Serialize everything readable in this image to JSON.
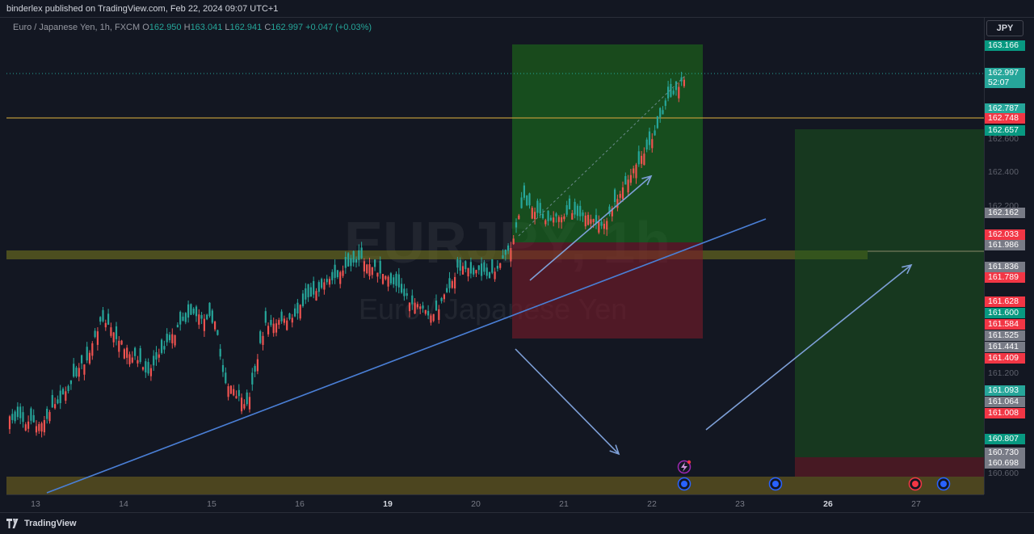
{
  "header": {
    "publish_text": "binderlex published on TradingView.com, Feb 22, 2024 09:07 UTC+1"
  },
  "legend": {
    "symbol": "Euro / Japanese Yen, 1h, FXCM",
    "o_label": "O",
    "o": "162.950",
    "h_label": "H",
    "h": "163.041",
    "l_label": "L",
    "l": "162.941",
    "c_label": "C",
    "c": "162.997",
    "change": "+0.047 (+0.03%)"
  },
  "currency_button": "JPY",
  "watermark": {
    "symbol": "EURJPY, 1h",
    "name": "Euro / Japanese Yen"
  },
  "price_labels": [
    {
      "text": "163.166",
      "color": "#089981"
    },
    {
      "text": "162.997",
      "color": "#26a69a"
    },
    {
      "text": "52:07",
      "color": "#26a69a"
    },
    {
      "text": "162.787",
      "color": "#26a69a"
    },
    {
      "text": "162.748",
      "color": "#f23645"
    },
    {
      "text": "162.657",
      "color": "#089981"
    },
    {
      "text": "162.162",
      "color": "#787b86"
    },
    {
      "text": "162.033",
      "color": "#f23645"
    },
    {
      "text": "161.986",
      "color": "#787b86"
    },
    {
      "text": "161.836",
      "color": "#787b86"
    },
    {
      "text": "161.789",
      "color": "#f23645"
    },
    {
      "text": "161.628",
      "color": "#f23645"
    },
    {
      "text": "161.600",
      "color": "#089981"
    },
    {
      "text": "161.584",
      "color": "#f23645"
    },
    {
      "text": "161.525",
      "color": "#787b86"
    },
    {
      "text": "161.441",
      "color": "#787b86"
    },
    {
      "text": "161.409",
      "color": "#f23645"
    },
    {
      "text": "161.093",
      "color": "#26a69a"
    },
    {
      "text": "161.064",
      "color": "#787b86"
    },
    {
      "text": "161.008",
      "color": "#f23645"
    },
    {
      "text": "160.807",
      "color": "#089981"
    },
    {
      "text": "160.730",
      "color": "#787b86"
    },
    {
      "text": "160.698",
      "color": "#787b86"
    }
  ],
  "price_ticks": [
    "162.600",
    "162.400",
    "162.200",
    "161.200",
    "160.600"
  ],
  "time_ticks": [
    {
      "label": "13",
      "bold": false
    },
    {
      "label": "14",
      "bold": false
    },
    {
      "label": "15",
      "bold": false
    },
    {
      "label": "16",
      "bold": false
    },
    {
      "label": "19",
      "bold": true
    },
    {
      "label": "20",
      "bold": false
    },
    {
      "label": "21",
      "bold": false
    },
    {
      "label": "22",
      "bold": false
    },
    {
      "label": "23",
      "bold": false
    },
    {
      "label": "26",
      "bold": true
    },
    {
      "label": "27",
      "bold": false
    }
  ],
  "footer": {
    "brand": "TradingView"
  },
  "colors": {
    "up": "#26a69a",
    "down": "#ef5350",
    "trendline": "#4a7fd6",
    "level": "#b8963a"
  }
}
